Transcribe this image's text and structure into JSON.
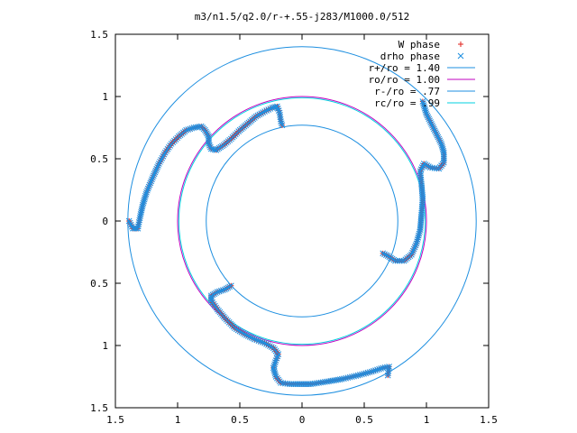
{
  "chart_data": {
    "type": "scatter",
    "title": "m3/n1.5/q2.0/r-+.55-j283/M1000.0/512",
    "xlabel": "",
    "ylabel": "",
    "xlim": [
      -1.5,
      1.5
    ],
    "ylim": [
      -1.5,
      1.5
    ],
    "xticks": [
      -1.5,
      -1,
      -0.5,
      0,
      0.5,
      1,
      1.5
    ],
    "yticks": [
      -1.5,
      -1,
      -0.5,
      0,
      0.5,
      1,
      1.5
    ],
    "xtick_labels": [
      "1.5",
      "1",
      "0.5",
      "0",
      "0.5",
      "1",
      "1.5"
    ],
    "ytick_labels": [
      "1.5",
      "1",
      "0.5",
      "0",
      "0.5",
      "1",
      "1.5"
    ],
    "grid": false,
    "legend_position": "top-right",
    "series": [
      {
        "name": "W phase",
        "kind": "points",
        "marker": "plus",
        "color": "#e0201b",
        "arms": [
          {
            "points": [
              [
                -1.39,
                0.0
              ],
              [
                -1.36,
                -0.06
              ],
              [
                -1.32,
                -0.06
              ],
              [
                -1.3,
                0.04
              ],
              [
                -1.28,
                0.13
              ],
              [
                -1.25,
                0.23
              ],
              [
                -1.2,
                0.35
              ],
              [
                -1.15,
                0.46
              ],
              [
                -1.1,
                0.55
              ],
              [
                -1.05,
                0.62
              ],
              [
                -0.99,
                0.68
              ],
              [
                -0.93,
                0.73
              ],
              [
                -0.87,
                0.75
              ],
              [
                -0.81,
                0.76
              ],
              [
                -0.78,
                0.73
              ],
              [
                -0.75,
                0.68
              ],
              [
                -0.75,
                0.62
              ],
              [
                -0.73,
                0.58
              ],
              [
                -0.69,
                0.57
              ],
              [
                -0.63,
                0.61
              ],
              [
                -0.57,
                0.66
              ],
              [
                -0.51,
                0.72
              ],
              [
                -0.44,
                0.78
              ],
              [
                -0.37,
                0.84
              ],
              [
                -0.3,
                0.88
              ],
              [
                -0.24,
                0.91
              ],
              [
                -0.2,
                0.92
              ],
              [
                -0.18,
                0.87
              ],
              [
                -0.17,
                0.8
              ],
              [
                -0.16,
                0.77
              ]
            ]
          },
          {
            "points": [
              [
                0.97,
                0.96
              ],
              [
                1.0,
                0.86
              ],
              [
                1.04,
                0.78
              ],
              [
                1.08,
                0.7
              ],
              [
                1.12,
                0.62
              ],
              [
                1.14,
                0.55
              ],
              [
                1.14,
                0.47
              ],
              [
                1.1,
                0.42
              ],
              [
                1.03,
                0.43
              ],
              [
                0.98,
                0.46
              ],
              [
                0.95,
                0.4
              ],
              [
                0.96,
                0.3
              ],
              [
                0.97,
                0.18
              ],
              [
                0.96,
                0.05
              ],
              [
                0.95,
                -0.07
              ],
              [
                0.92,
                -0.18
              ],
              [
                0.88,
                -0.27
              ],
              [
                0.82,
                -0.32
              ],
              [
                0.75,
                -0.32
              ],
              [
                0.69,
                -0.28
              ],
              [
                0.65,
                -0.26
              ]
            ]
          },
          {
            "points": [
              [
                0.69,
                -1.24
              ],
              [
                0.7,
                -1.17
              ],
              [
                0.65,
                -1.18
              ],
              [
                0.56,
                -1.21
              ],
              [
                0.45,
                -1.24
              ],
              [
                0.32,
                -1.27
              ],
              [
                0.2,
                -1.29
              ],
              [
                0.07,
                -1.31
              ],
              [
                -0.02,
                -1.31
              ],
              [
                -0.1,
                -1.31
              ],
              [
                -0.17,
                -1.3
              ],
              [
                -0.21,
                -1.25
              ],
              [
                -0.23,
                -1.18
              ],
              [
                -0.21,
                -1.12
              ],
              [
                -0.19,
                -1.07
              ],
              [
                -0.23,
                -1.02
              ],
              [
                -0.3,
                -0.98
              ],
              [
                -0.38,
                -0.95
              ],
              [
                -0.46,
                -0.91
              ],
              [
                -0.54,
                -0.86
              ],
              [
                -0.62,
                -0.78
              ],
              [
                -0.68,
                -0.71
              ],
              [
                -0.73,
                -0.64
              ],
              [
                -0.73,
                -0.6
              ],
              [
                -0.68,
                -0.57
              ],
              [
                -0.62,
                -0.55
              ],
              [
                -0.57,
                -0.52
              ]
            ]
          }
        ]
      },
      {
        "name": "drho phase",
        "kind": "points",
        "marker": "cross",
        "color": "#1e8fe0",
        "arms": [
          {
            "points": [
              [
                -1.39,
                0.0
              ],
              [
                -1.36,
                -0.06
              ],
              [
                -1.32,
                -0.06
              ],
              [
                -1.3,
                0.04
              ],
              [
                -1.28,
                0.13
              ],
              [
                -1.25,
                0.23
              ],
              [
                -1.2,
                0.35
              ],
              [
                -1.15,
                0.46
              ],
              [
                -1.1,
                0.55
              ],
              [
                -1.05,
                0.62
              ],
              [
                -0.99,
                0.68
              ],
              [
                -0.93,
                0.73
              ],
              [
                -0.87,
                0.75
              ],
              [
                -0.81,
                0.76
              ],
              [
                -0.78,
                0.73
              ],
              [
                -0.75,
                0.68
              ],
              [
                -0.75,
                0.62
              ],
              [
                -0.73,
                0.58
              ],
              [
                -0.69,
                0.57
              ],
              [
                -0.63,
                0.61
              ],
              [
                -0.57,
                0.66
              ],
              [
                -0.51,
                0.72
              ],
              [
                -0.44,
                0.78
              ],
              [
                -0.37,
                0.84
              ],
              [
                -0.3,
                0.88
              ],
              [
                -0.24,
                0.91
              ],
              [
                -0.2,
                0.92
              ],
              [
                -0.18,
                0.87
              ],
              [
                -0.17,
                0.8
              ],
              [
                -0.16,
                0.77
              ]
            ]
          },
          {
            "points": [
              [
                0.97,
                0.96
              ],
              [
                1.0,
                0.86
              ],
              [
                1.04,
                0.78
              ],
              [
                1.08,
                0.7
              ],
              [
                1.12,
                0.62
              ],
              [
                1.14,
                0.55
              ],
              [
                1.14,
                0.47
              ],
              [
                1.1,
                0.42
              ],
              [
                1.03,
                0.43
              ],
              [
                0.98,
                0.46
              ],
              [
                0.95,
                0.4
              ],
              [
                0.96,
                0.3
              ],
              [
                0.97,
                0.18
              ],
              [
                0.96,
                0.05
              ],
              [
                0.95,
                -0.07
              ],
              [
                0.92,
                -0.18
              ],
              [
                0.88,
                -0.27
              ],
              [
                0.82,
                -0.32
              ],
              [
                0.75,
                -0.32
              ],
              [
                0.69,
                -0.28
              ],
              [
                0.65,
                -0.26
              ]
            ]
          },
          {
            "points": [
              [
                0.69,
                -1.24
              ],
              [
                0.7,
                -1.17
              ],
              [
                0.65,
                -1.18
              ],
              [
                0.56,
                -1.21
              ],
              [
                0.45,
                -1.24
              ],
              [
                0.32,
                -1.27
              ],
              [
                0.2,
                -1.29
              ],
              [
                0.07,
                -1.31
              ],
              [
                -0.02,
                -1.31
              ],
              [
                -0.1,
                -1.31
              ],
              [
                -0.17,
                -1.3
              ],
              [
                -0.21,
                -1.25
              ],
              [
                -0.23,
                -1.18
              ],
              [
                -0.21,
                -1.12
              ],
              [
                -0.19,
                -1.07
              ],
              [
                -0.23,
                -1.02
              ],
              [
                -0.3,
                -0.98
              ],
              [
                -0.38,
                -0.95
              ],
              [
                -0.46,
                -0.91
              ],
              [
                -0.54,
                -0.86
              ],
              [
                -0.62,
                -0.78
              ],
              [
                -0.68,
                -0.71
              ],
              [
                -0.73,
                -0.64
              ],
              [
                -0.73,
                -0.6
              ],
              [
                -0.68,
                -0.57
              ],
              [
                -0.62,
                -0.55
              ],
              [
                -0.57,
                -0.52
              ]
            ]
          }
        ]
      },
      {
        "name": "r+/ro = 1.40",
        "kind": "circle",
        "radius": 1.4,
        "color": "#1e8fe0"
      },
      {
        "name": "ro/ro = 1.00",
        "kind": "circle",
        "radius": 1.0,
        "color": "#c000c0"
      },
      {
        "name": "r-/ro = .77",
        "kind": "circle",
        "radius": 0.77,
        "color": "#1e8fe0"
      },
      {
        "name": "rc/ro = .99",
        "kind": "circle",
        "radius": 0.99,
        "color": "#00d0e0"
      }
    ]
  }
}
